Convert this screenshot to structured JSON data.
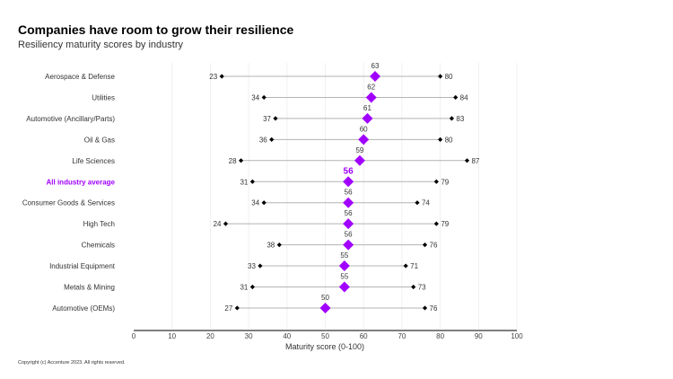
{
  "chart_data": {
    "type": "dot-range",
    "title": "Companies have room to grow their resilience",
    "subtitle": "Resiliency maturity scores by industry",
    "xlabel": "Maturity score (0-100)",
    "xlim": [
      0,
      100
    ],
    "xticks": [
      0,
      10,
      20,
      30,
      40,
      50,
      60,
      70,
      80,
      90,
      100
    ],
    "grid": true,
    "colors": {
      "average": "#a100ff",
      "minmax": "#000000",
      "range_line": "#b3b3b3",
      "grid": "#ececec"
    },
    "highlight_category": "All industry average",
    "categories": [
      "Aerospace & Defense",
      "Utilities",
      "Automotive (Ancillary/Parts)",
      "Oil & Gas",
      "Life Sciences",
      "All industry average",
      "Consumer Goods & Services",
      "High Tech",
      "Chemicals",
      "Industrial Equipment",
      "Metals & Mining",
      "Automotive (OEMs)"
    ],
    "series": [
      {
        "name": "min",
        "values": [
          23,
          34,
          37,
          36,
          28,
          31,
          34,
          24,
          38,
          33,
          31,
          27
        ]
      },
      {
        "name": "average",
        "values": [
          63,
          62,
          61,
          60,
          59,
          56,
          56,
          56,
          56,
          55,
          55,
          50
        ]
      },
      {
        "name": "max",
        "values": [
          80,
          84,
          83,
          80,
          87,
          79,
          74,
          79,
          76,
          71,
          73,
          76
        ]
      }
    ]
  },
  "footer": {
    "copyright": "Copyright (c) Accenture 2023. All rights reserved."
  }
}
